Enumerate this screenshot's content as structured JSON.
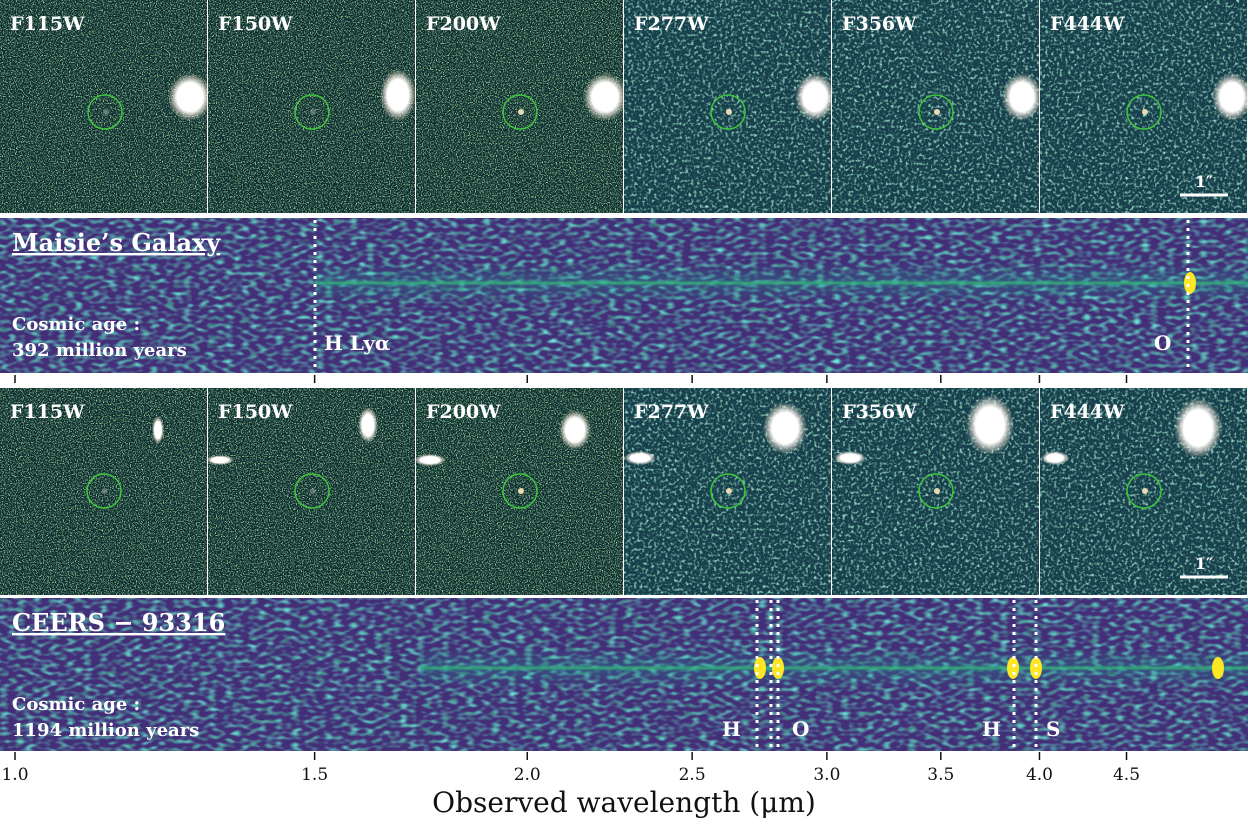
{
  "galaxies": [
    {
      "filters": [
        "F115W",
        "F150W",
        "F200W",
        "F277W",
        "F356W",
        "F444W"
      ],
      "scale_bar": "1″",
      "name": "Maisie’s Galaxy",
      "age_label": "Cosmic age :",
      "age": "392 million years",
      "lines": [
        "H Lyα",
        "O"
      ]
    },
    {
      "filters": [
        "F115W",
        "F150W",
        "F200W",
        "F277W",
        "F356W",
        "F444W"
      ],
      "scale_bar": "1″",
      "name": "CEERS − 93316",
      "age_label": "Cosmic age :",
      "age": "1194 million years",
      "lines": [
        "H",
        "O",
        "H",
        "S"
      ]
    }
  ],
  "xaxis": {
    "label": "Observed wavelength (μm)",
    "ticks": [
      {
        "value": 1,
        "label": "1.0"
      },
      1.5,
      {
        "value": 2,
        "label": "2.0"
      },
      2.5,
      {
        "value": 3,
        "label": "3.0"
      },
      3.5,
      {
        "value": 4,
        "label": "4.0"
      },
      4.5
    ]
  }
}
